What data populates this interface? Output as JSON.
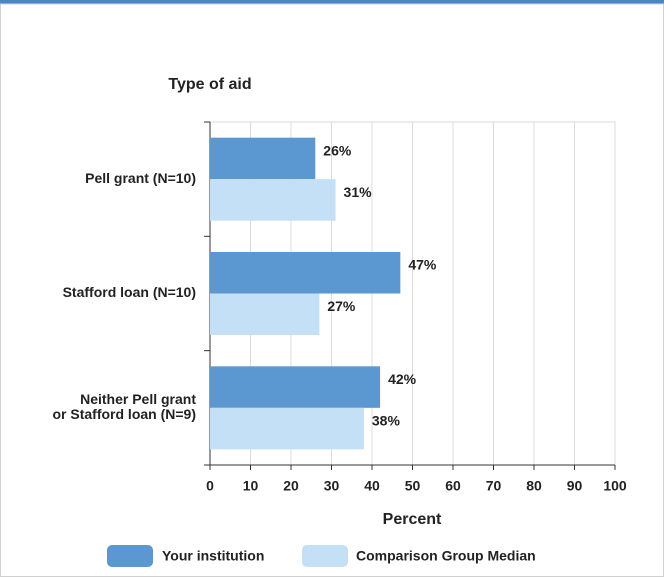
{
  "chart_data": {
    "type": "bar",
    "orientation": "horizontal",
    "y_axis_title": "Type of aid",
    "x_axis_title": "Percent",
    "categories": [
      [
        "Pell grant  (N=10)"
      ],
      [
        "Stafford loan (N=10)"
      ],
      [
        "Neither Pell grant",
        "or Stafford loan (N=9)"
      ]
    ],
    "series": [
      {
        "name": "Your institution",
        "color": "#5b97d0",
        "values": [
          26,
          47,
          42
        ],
        "value_labels": [
          "26%",
          "47%",
          "42%"
        ]
      },
      {
        "name": "Comparison Group Median",
        "color": "#c4e0f6",
        "values": [
          31,
          27,
          38
        ],
        "value_labels": [
          "31%",
          "27%",
          "38%"
        ]
      }
    ],
    "xlim": [
      0,
      100
    ],
    "xticks": [
      0,
      10,
      20,
      30,
      40,
      50,
      60,
      70,
      80,
      90,
      100
    ],
    "grid": true
  }
}
